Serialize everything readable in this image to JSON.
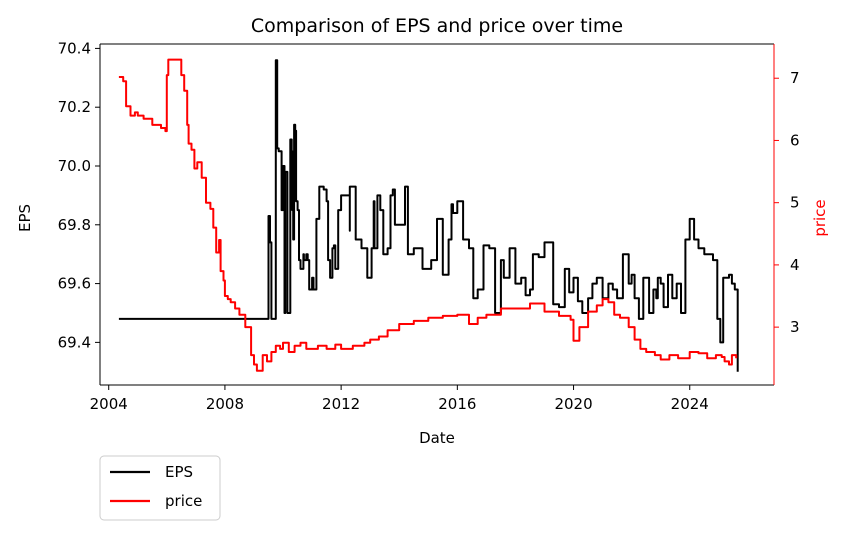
{
  "chart_data": {
    "type": "line",
    "title": "Comparison of EPS and price over time",
    "xlabel": "Date",
    "ylabel_left": "EPS",
    "ylabel_right": "price",
    "xlim": [
      2003.7,
      2026.9
    ],
    "ylim_left": [
      69.255,
      70.415
    ],
    "ylim_right": [
      2.07,
      7.55
    ],
    "x_ticks": [
      2004,
      2008,
      2012,
      2016,
      2020,
      2024
    ],
    "y_left_ticks": [
      69.4,
      69.6,
      69.8,
      70.0,
      70.2,
      70.4
    ],
    "y_right_ticks": [
      3,
      4,
      5,
      6,
      7
    ],
    "grid": false,
    "legend_position": "below-left",
    "colors": {
      "eps": "#000000",
      "price": "#ff0000"
    },
    "series": [
      {
        "name": "EPS",
        "axis": "left",
        "x": [
          2004.35,
          2009.5,
          2009.5,
          2009.55,
          2009.55,
          2009.6,
          2009.6,
          2009.75,
          2009.8,
          2009.8,
          2009.85,
          2009.9,
          2009.95,
          2010.0,
          2010.05,
          2010.08,
          2010.12,
          2010.15,
          2010.2,
          2010.25,
          2010.3,
          2010.32,
          2010.35,
          2010.38,
          2010.4,
          2010.42,
          2010.45,
          2010.5,
          2010.55,
          2010.6,
          2010.7,
          2010.72,
          2010.8,
          2010.85,
          2010.9,
          2011.0,
          2011.05,
          2011.15,
          2011.25,
          2011.4,
          2011.5,
          2011.55,
          2011.62,
          2011.7,
          2011.75,
          2011.8,
          2011.9,
          2012.0,
          2012.3,
          2012.3,
          2012.5,
          2012.7,
          2012.9,
          2013.05,
          2013.12,
          2013.15,
          2013.25,
          2013.35,
          2013.45,
          2013.6,
          2013.7,
          2013.78,
          2013.85,
          2014.0,
          2014.2,
          2014.3,
          2014.5,
          2014.8,
          2015.1,
          2015.3,
          2015.5,
          2015.7,
          2015.8,
          2015.85,
          2016.0,
          2016.2,
          2016.4,
          2016.55,
          2016.7,
          2016.9,
          2017.1,
          2017.3,
          2017.5,
          2017.6,
          2017.8,
          2018.0,
          2018.2,
          2018.35,
          2018.5,
          2018.6,
          2018.8,
          2019.0,
          2019.3,
          2019.5,
          2019.7,
          2019.85,
          2020.0,
          2020.15,
          2020.3,
          2020.5,
          2020.65,
          2020.8,
          2021.0,
          2021.2,
          2021.35,
          2021.5,
          2021.7,
          2021.9,
          2022.0,
          2022.1,
          2022.25,
          2022.4,
          2022.6,
          2022.75,
          2022.85,
          2022.9,
          2023.0,
          2023.1,
          2023.25,
          2023.4,
          2023.55,
          2023.7,
          2023.85,
          2024.0,
          2024.15,
          2024.3,
          2024.5,
          2024.65,
          2024.8,
          2024.95,
          2025.05,
          2025.15,
          2025.25,
          2025.35,
          2025.45,
          2025.55,
          2025.65
        ],
        "values": [
          69.48,
          69.48,
          69.83,
          69.75,
          69.74,
          69.73,
          69.48,
          70.36,
          70.35,
          70.06,
          70.05,
          70.05,
          69.85,
          70.0,
          69.5,
          69.98,
          69.98,
          69.5,
          69.5,
          70.09,
          70.05,
          69.85,
          69.75,
          70.14,
          70.14,
          70.12,
          69.88,
          69.85,
          69.68,
          69.65,
          69.7,
          69.68,
          69.7,
          69.68,
          69.58,
          69.62,
          69.58,
          69.82,
          69.93,
          69.92,
          69.88,
          69.68,
          69.62,
          69.72,
          69.73,
          69.65,
          69.85,
          69.9,
          69.78,
          69.93,
          69.75,
          69.72,
          69.62,
          69.72,
          69.88,
          69.72,
          69.9,
          69.85,
          69.7,
          69.72,
          69.9,
          69.92,
          69.8,
          69.8,
          69.93,
          69.7,
          69.72,
          69.65,
          69.68,
          69.82,
          69.63,
          69.75,
          69.87,
          69.84,
          69.88,
          69.75,
          69.72,
          69.55,
          69.58,
          69.73,
          69.72,
          69.5,
          69.68,
          69.62,
          69.72,
          69.6,
          69.62,
          69.56,
          69.58,
          69.7,
          69.69,
          69.74,
          69.53,
          69.52,
          69.65,
          69.57,
          69.62,
          69.54,
          69.5,
          69.55,
          69.6,
          69.62,
          69.55,
          69.6,
          69.58,
          69.55,
          69.7,
          69.6,
          69.63,
          69.55,
          69.48,
          69.62,
          69.5,
          69.58,
          69.55,
          69.62,
          69.6,
          69.52,
          69.63,
          69.55,
          69.6,
          69.5,
          69.75,
          69.82,
          69.75,
          69.72,
          69.7,
          69.7,
          69.68,
          69.48,
          69.4,
          69.62,
          69.62,
          69.63,
          69.6,
          69.58,
          69.3
        ]
      },
      {
        "name": "price",
        "axis": "right",
        "x": [
          2004.35,
          2004.5,
          2004.6,
          2004.75,
          2004.9,
          2005.0,
          2005.2,
          2005.5,
          2005.8,
          2005.95,
          2006.0,
          2006.05,
          2006.15,
          2006.3,
          2006.5,
          2006.6,
          2006.7,
          2006.75,
          2006.85,
          2006.95,
          2007.05,
          2007.2,
          2007.35,
          2007.5,
          2007.6,
          2007.7,
          2007.8,
          2007.85,
          2007.95,
          2008.0,
          2008.1,
          2008.2,
          2008.35,
          2008.5,
          2008.7,
          2008.9,
          2009.0,
          2009.1,
          2009.3,
          2009.45,
          2009.6,
          2009.75,
          2009.9,
          2010.0,
          2010.2,
          2010.4,
          2010.6,
          2010.8,
          2011.0,
          2011.2,
          2011.5,
          2011.8,
          2012.0,
          2012.4,
          2012.8,
          2013.0,
          2013.3,
          2013.6,
          2014.0,
          2014.5,
          2015.0,
          2015.5,
          2016.0,
          2016.4,
          2016.7,
          2017.0,
          2017.5,
          2018.0,
          2018.5,
          2019.0,
          2019.5,
          2019.9,
          2020.0,
          2020.2,
          2020.5,
          2020.8,
          2021.0,
          2021.2,
          2021.4,
          2021.6,
          2021.9,
          2022.1,
          2022.3,
          2022.5,
          2022.8,
          2023.0,
          2023.3,
          2023.6,
          2024.0,
          2024.3,
          2024.6,
          2024.9,
          2025.1,
          2025.2,
          2025.35,
          2025.45,
          2025.6
        ],
        "values": [
          7.02,
          6.95,
          6.55,
          6.4,
          6.45,
          6.4,
          6.35,
          6.25,
          6.2,
          6.15,
          7.05,
          7.3,
          7.3,
          7.3,
          7.05,
          6.8,
          6.25,
          5.95,
          5.85,
          5.55,
          5.65,
          5.4,
          5.0,
          4.9,
          4.6,
          4.2,
          4.4,
          3.9,
          3.75,
          3.5,
          3.45,
          3.4,
          3.3,
          3.2,
          3.0,
          2.55,
          2.4,
          2.3,
          2.55,
          2.45,
          2.6,
          2.7,
          2.65,
          2.75,
          2.6,
          2.7,
          2.75,
          2.65,
          2.65,
          2.7,
          2.65,
          2.72,
          2.65,
          2.7,
          2.75,
          2.8,
          2.85,
          2.95,
          3.05,
          3.1,
          3.15,
          3.18,
          3.2,
          3.05,
          3.15,
          3.2,
          3.3,
          3.3,
          3.38,
          3.25,
          3.18,
          3.12,
          2.78,
          3.0,
          3.25,
          3.35,
          3.45,
          3.4,
          3.2,
          3.15,
          3.0,
          2.8,
          2.65,
          2.6,
          2.55,
          2.48,
          2.55,
          2.5,
          2.6,
          2.58,
          2.5,
          2.55,
          2.52,
          2.45,
          2.4,
          2.55,
          2.5
        ]
      }
    ]
  }
}
